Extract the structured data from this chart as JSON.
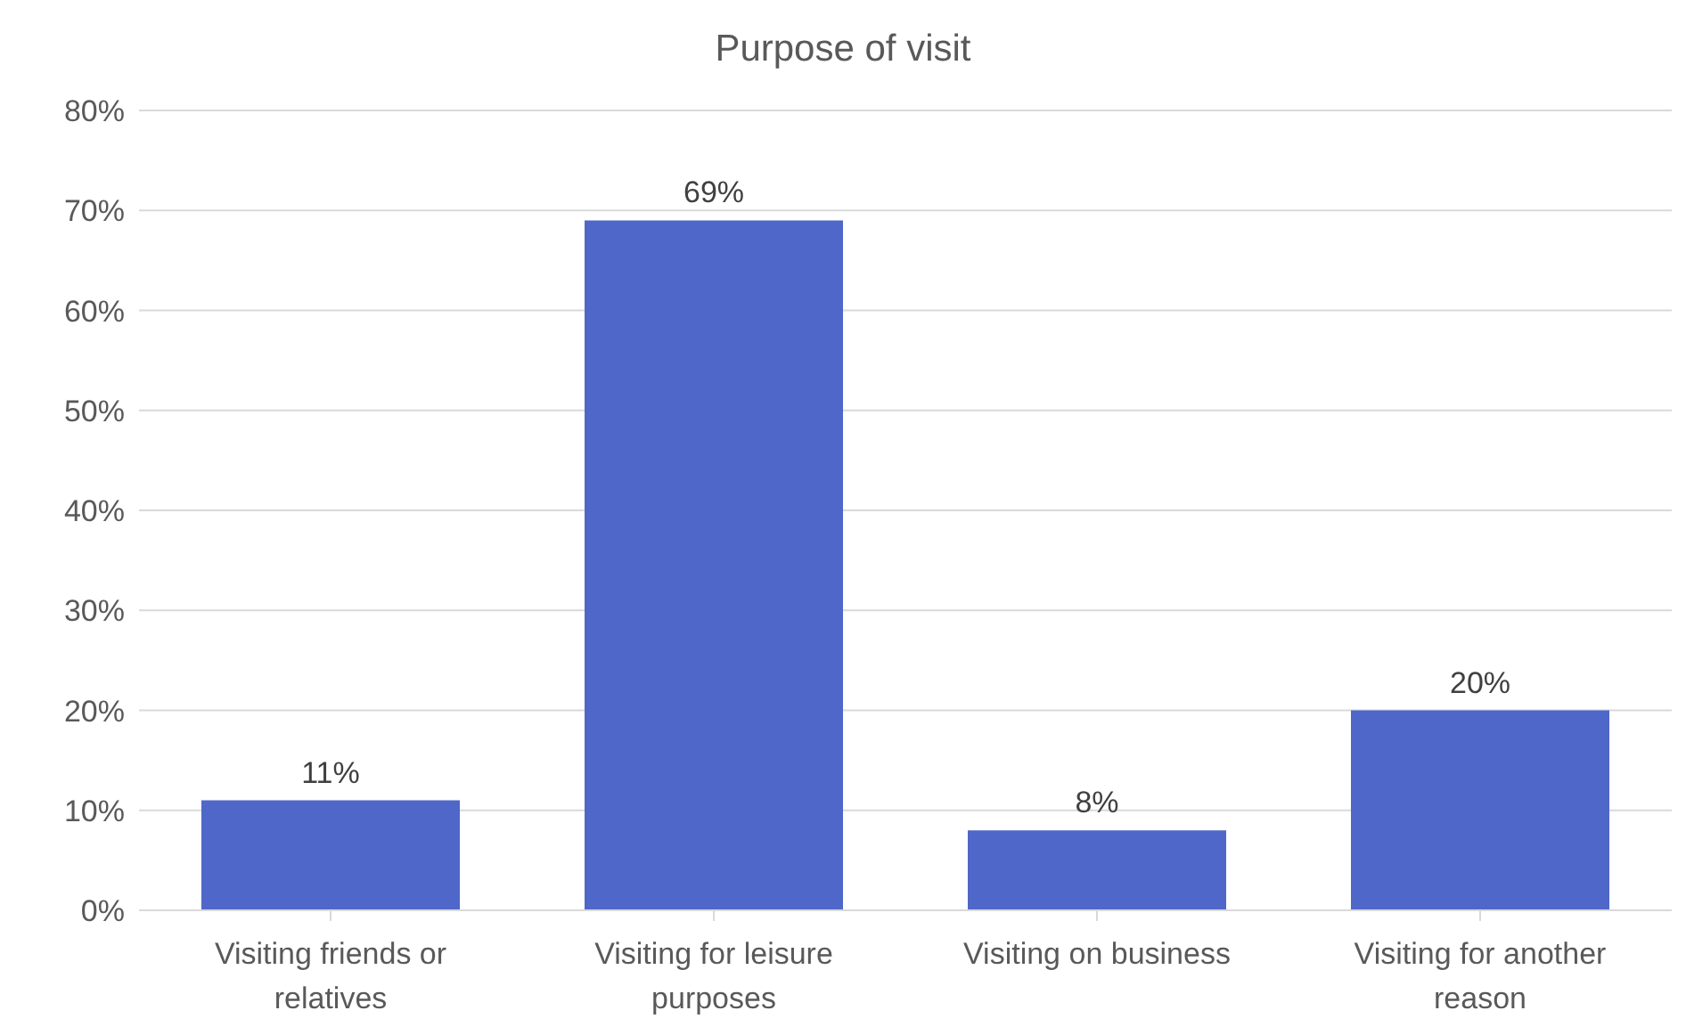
{
  "chart_data": {
    "type": "bar",
    "title": "Purpose of visit",
    "categories": [
      "Visiting friends or relatives",
      "Visiting for leisure purposes",
      "Visiting on business",
      "Visiting for another reason"
    ],
    "values": [
      11,
      69,
      8,
      20
    ],
    "value_labels": [
      "11%",
      "69%",
      "8%",
      "20%"
    ],
    "color": "#4f67c8",
    "ylim": [
      0,
      80
    ],
    "yticks": [
      {
        "value": 0,
        "label": "0%"
      },
      {
        "value": 10,
        "label": "10%"
      },
      {
        "value": 20,
        "label": "20%"
      },
      {
        "value": 30,
        "label": "30%"
      },
      {
        "value": 40,
        "label": "40%"
      },
      {
        "value": 50,
        "label": "50%"
      },
      {
        "value": 60,
        "label": "60%"
      },
      {
        "value": 70,
        "label": "70%"
      },
      {
        "value": 80,
        "label": "80%"
      }
    ],
    "grid": "y",
    "legend": false
  }
}
